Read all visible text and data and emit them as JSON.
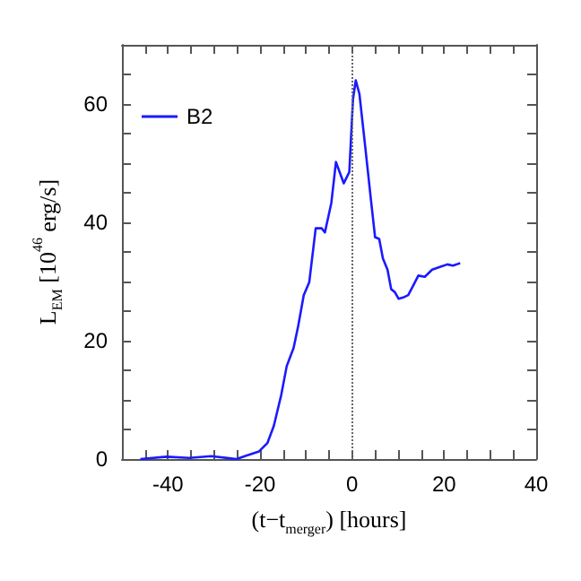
{
  "chart_data": {
    "type": "line",
    "xlabel": "(t−t$_{merger}$) [hours]",
    "ylabel": "L$_{EM}$ [10$^{46}$ erg/s]",
    "xlim": [
      -50,
      40
    ],
    "ylim": [
      0,
      70
    ],
    "xticks": [
      {
        "value": -50,
        "label": null
      },
      {
        "value": -45,
        "label": null
      },
      -40,
      {
        "value": -35,
        "label": null
      },
      {
        "value": -30,
        "label": null
      },
      {
        "value": -25,
        "label": null
      },
      -20,
      {
        "value": -15,
        "label": null
      },
      {
        "value": -10,
        "label": null
      },
      {
        "value": -5,
        "label": null
      },
      0,
      {
        "value": 5,
        "label": null
      },
      {
        "value": 10,
        "label": null
      },
      {
        "value": 15,
        "label": null
      },
      20,
      {
        "value": 25,
        "label": null
      },
      {
        "value": 30,
        "label": null
      },
      {
        "value": 35,
        "label": null
      },
      40
    ],
    "yticks": [
      0,
      {
        "value": 5,
        "label": null
      },
      {
        "value": 10,
        "label": null
      },
      {
        "value": 15,
        "label": null
      },
      20,
      {
        "value": 25,
        "label": null
      },
      {
        "value": 30,
        "label": null
      },
      {
        "value": 35,
        "label": null
      },
      40,
      {
        "value": 45,
        "label": null
      },
      {
        "value": 50,
        "label": null
      },
      {
        "value": 55,
        "label": null
      },
      60,
      {
        "value": 65,
        "label": null
      },
      {
        "value": 70,
        "label": null
      }
    ],
    "grid": false,
    "legend": "top left",
    "marker": "none",
    "line_style": "solid",
    "ref_lines": [
      {
        "axis": "x",
        "value": 0,
        "label": null,
        "color": "#666666",
        "line_style": "dotted"
      }
    ],
    "series": [
      {
        "name": "B2",
        "color": "#1a1aff",
        "x": [
          -46,
          -40.3,
          -35.4,
          -30.6,
          -25.1,
          -23.3,
          -20.2,
          -18.4,
          -17,
          -15.4,
          -14.2,
          -12.7,
          -11.7,
          -10.5,
          -9.3,
          -7.9,
          -6.6,
          -5.9,
          -4.5,
          -3.5,
          -1.8,
          -0.6,
          0.2,
          0.8,
          1.6,
          2.8,
          4.1,
          5,
          5.9,
          6.7,
          7.7,
          8.5,
          9.3,
          10.1,
          11.1,
          12.2,
          13.2,
          14.4,
          15.8,
          17.4,
          19.2,
          20.7,
          21.9,
          23.5
        ],
        "values": [
          0,
          0.4,
          0.2,
          0.5,
          0,
          0.5,
          1.3,
          2.7,
          5.6,
          10.8,
          15.7,
          18.8,
          22.5,
          27.7,
          29.9,
          39,
          39,
          38.3,
          43.3,
          50.2,
          46.6,
          48.5,
          60.8,
          64,
          61.7,
          53.2,
          43.8,
          37.5,
          37.2,
          33.9,
          32,
          28.7,
          28.2,
          27.1,
          27.3,
          27.7,
          29.2,
          31,
          30.8,
          32,
          32.5,
          32.9,
          32.7,
          33.1
        ]
      }
    ]
  }
}
